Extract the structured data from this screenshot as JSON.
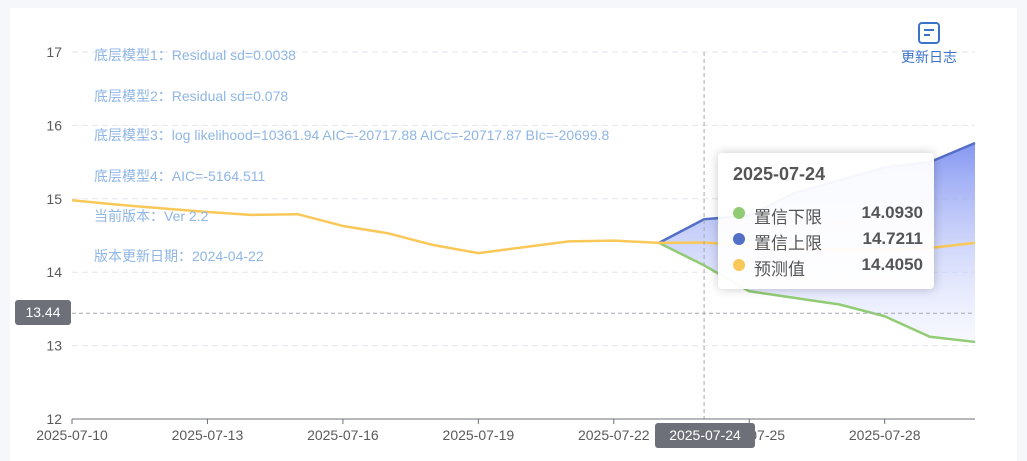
{
  "update_log": {
    "label": "更新日志",
    "icon": "document-icon"
  },
  "notes": [
    "底层模型1：Residual sd=0.0038",
    "底层模型2：Residual sd=0.078",
    "底层模型3：log likelihood=10361.94 AIC=-20717.88 AICc=-20717.87 BIc=-20699.8",
    "底层模型4：AIC=-5164.511",
    "当前版本：Ver 2.2",
    "版本更新日期：2024-04-22"
  ],
  "chart_data": {
    "type": "line",
    "ylim": [
      12,
      17
    ],
    "yticks": [
      "12",
      "13",
      "14",
      "15",
      "16",
      "17"
    ],
    "xlim": [
      "2025-07-10",
      "2025-07-30"
    ],
    "xticks": [
      "2025-07-10",
      "2025-07-13",
      "2025-07-16",
      "2025-07-19",
      "2025-07-22",
      "2025-07-25",
      "2025-07-28"
    ],
    "grid": true,
    "series": [
      {
        "name": "预测值",
        "color": "#fac858",
        "points": [
          [
            "2025-07-10",
            14.98
          ],
          [
            "2025-07-11",
            14.92
          ],
          [
            "2025-07-12",
            14.87
          ],
          [
            "2025-07-13",
            14.82
          ],
          [
            "2025-07-14",
            14.78
          ],
          [
            "2025-07-15",
            14.79
          ],
          [
            "2025-07-16",
            14.63
          ],
          [
            "2025-07-17",
            14.53
          ],
          [
            "2025-07-18",
            14.37
          ],
          [
            "2025-07-19",
            14.26
          ],
          [
            "2025-07-20",
            14.34
          ],
          [
            "2025-07-21",
            14.42
          ],
          [
            "2025-07-22",
            14.43
          ],
          [
            "2025-07-23",
            14.4
          ],
          [
            "2025-07-24",
            14.405
          ],
          [
            "2025-07-25",
            14.36
          ],
          [
            "2025-07-26",
            14.33
          ],
          [
            "2025-07-27",
            14.31
          ],
          [
            "2025-07-28",
            14.3
          ],
          [
            "2025-07-29",
            14.33
          ],
          [
            "2025-07-30",
            14.4
          ]
        ]
      },
      {
        "name": "置信下限",
        "color": "#91cc75",
        "points": [
          [
            "2025-07-23",
            14.4
          ],
          [
            "2025-07-24",
            14.093
          ],
          [
            "2025-07-25",
            13.74
          ],
          [
            "2025-07-26",
            13.65
          ],
          [
            "2025-07-27",
            13.56
          ],
          [
            "2025-07-28",
            13.4
          ],
          [
            "2025-07-29",
            13.12
          ],
          [
            "2025-07-30",
            13.05
          ]
        ]
      },
      {
        "name": "置信上限",
        "color": "#5470c6",
        "points": [
          [
            "2025-07-23",
            14.4
          ],
          [
            "2025-07-24",
            14.7211
          ],
          [
            "2025-07-25",
            14.77
          ],
          [
            "2025-07-26",
            15.08
          ],
          [
            "2025-07-27",
            15.25
          ],
          [
            "2025-07-28",
            15.43
          ],
          [
            "2025-07-29",
            15.5
          ],
          [
            "2025-07-30",
            15.76
          ]
        ]
      }
    ],
    "pointer": {
      "x": "2025-07-24",
      "y": 13.44,
      "y_label": "13.44"
    },
    "tooltip": {
      "title": "2025-07-24",
      "rows": [
        {
          "name": "置信下限",
          "value": "14.0930",
          "color": "#91cc75"
        },
        {
          "name": "置信上限",
          "value": "14.7211",
          "color": "#5470c6"
        },
        {
          "name": "预测值",
          "value": "14.4050",
          "color": "#fac858"
        }
      ]
    }
  }
}
